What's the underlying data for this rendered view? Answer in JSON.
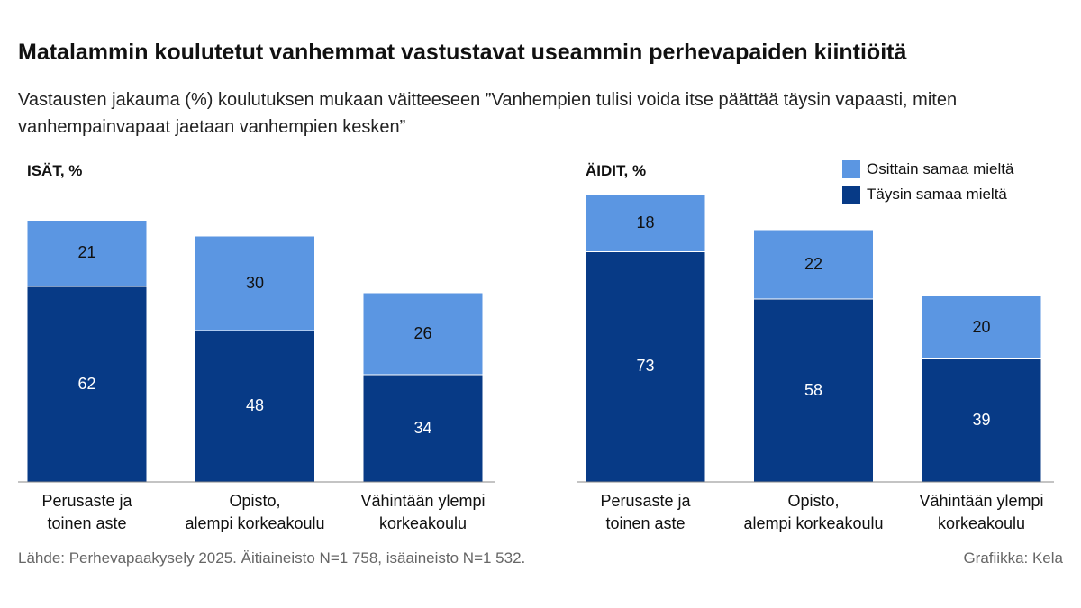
{
  "title": "Matalammin koulutetut vanhemmat vastustavat useammin perhevapaiden kiintiöitä",
  "subtitle": "Vastausten jakauma (%) koulutuksen mukaan väitteeseen ”Vanhempien tulisi voida itse päättää täysin vapaasti, miten vanhempainvapaat jaetaan vanhempien kesken”",
  "source": "Lähde: Perhevapaakysely 2025. Äitiaineisto N=1 758, isäaineisto N=1 532.",
  "credit": "Grafiikka: Kela",
  "chart_data": [
    {
      "type": "bar",
      "stacked": true,
      "title": "ISÄT, %",
      "categories": [
        "Perusaste ja\ntoinen aste",
        "Opisto,\nalempi korkeakoulu",
        "Vähintään ylempi\nkorkeakoulu"
      ],
      "series": [
        {
          "name": "Täysin samaa mieltä",
          "color": "#073a86",
          "values": [
            62,
            48,
            34
          ]
        },
        {
          "name": "Osittain samaa mieltä",
          "color": "#5b96e2",
          "values": [
            21,
            30,
            26
          ]
        }
      ],
      "ylim": [
        0,
        100
      ]
    },
    {
      "type": "bar",
      "stacked": true,
      "title": "ÄIDIT, %",
      "categories": [
        "Perusaste ja\ntoinen aste",
        "Opisto,\nalempi korkeakoulu",
        "Vähintään ylempi\nkorkeakoulu"
      ],
      "series": [
        {
          "name": "Täysin samaa mieltä",
          "color": "#073a86",
          "values": [
            73,
            58,
            39
          ]
        },
        {
          "name": "Osittain samaa mieltä",
          "color": "#5b96e2",
          "values": [
            18,
            22,
            20
          ]
        }
      ],
      "ylim": [
        0,
        100
      ],
      "legend": "top-right"
    }
  ]
}
